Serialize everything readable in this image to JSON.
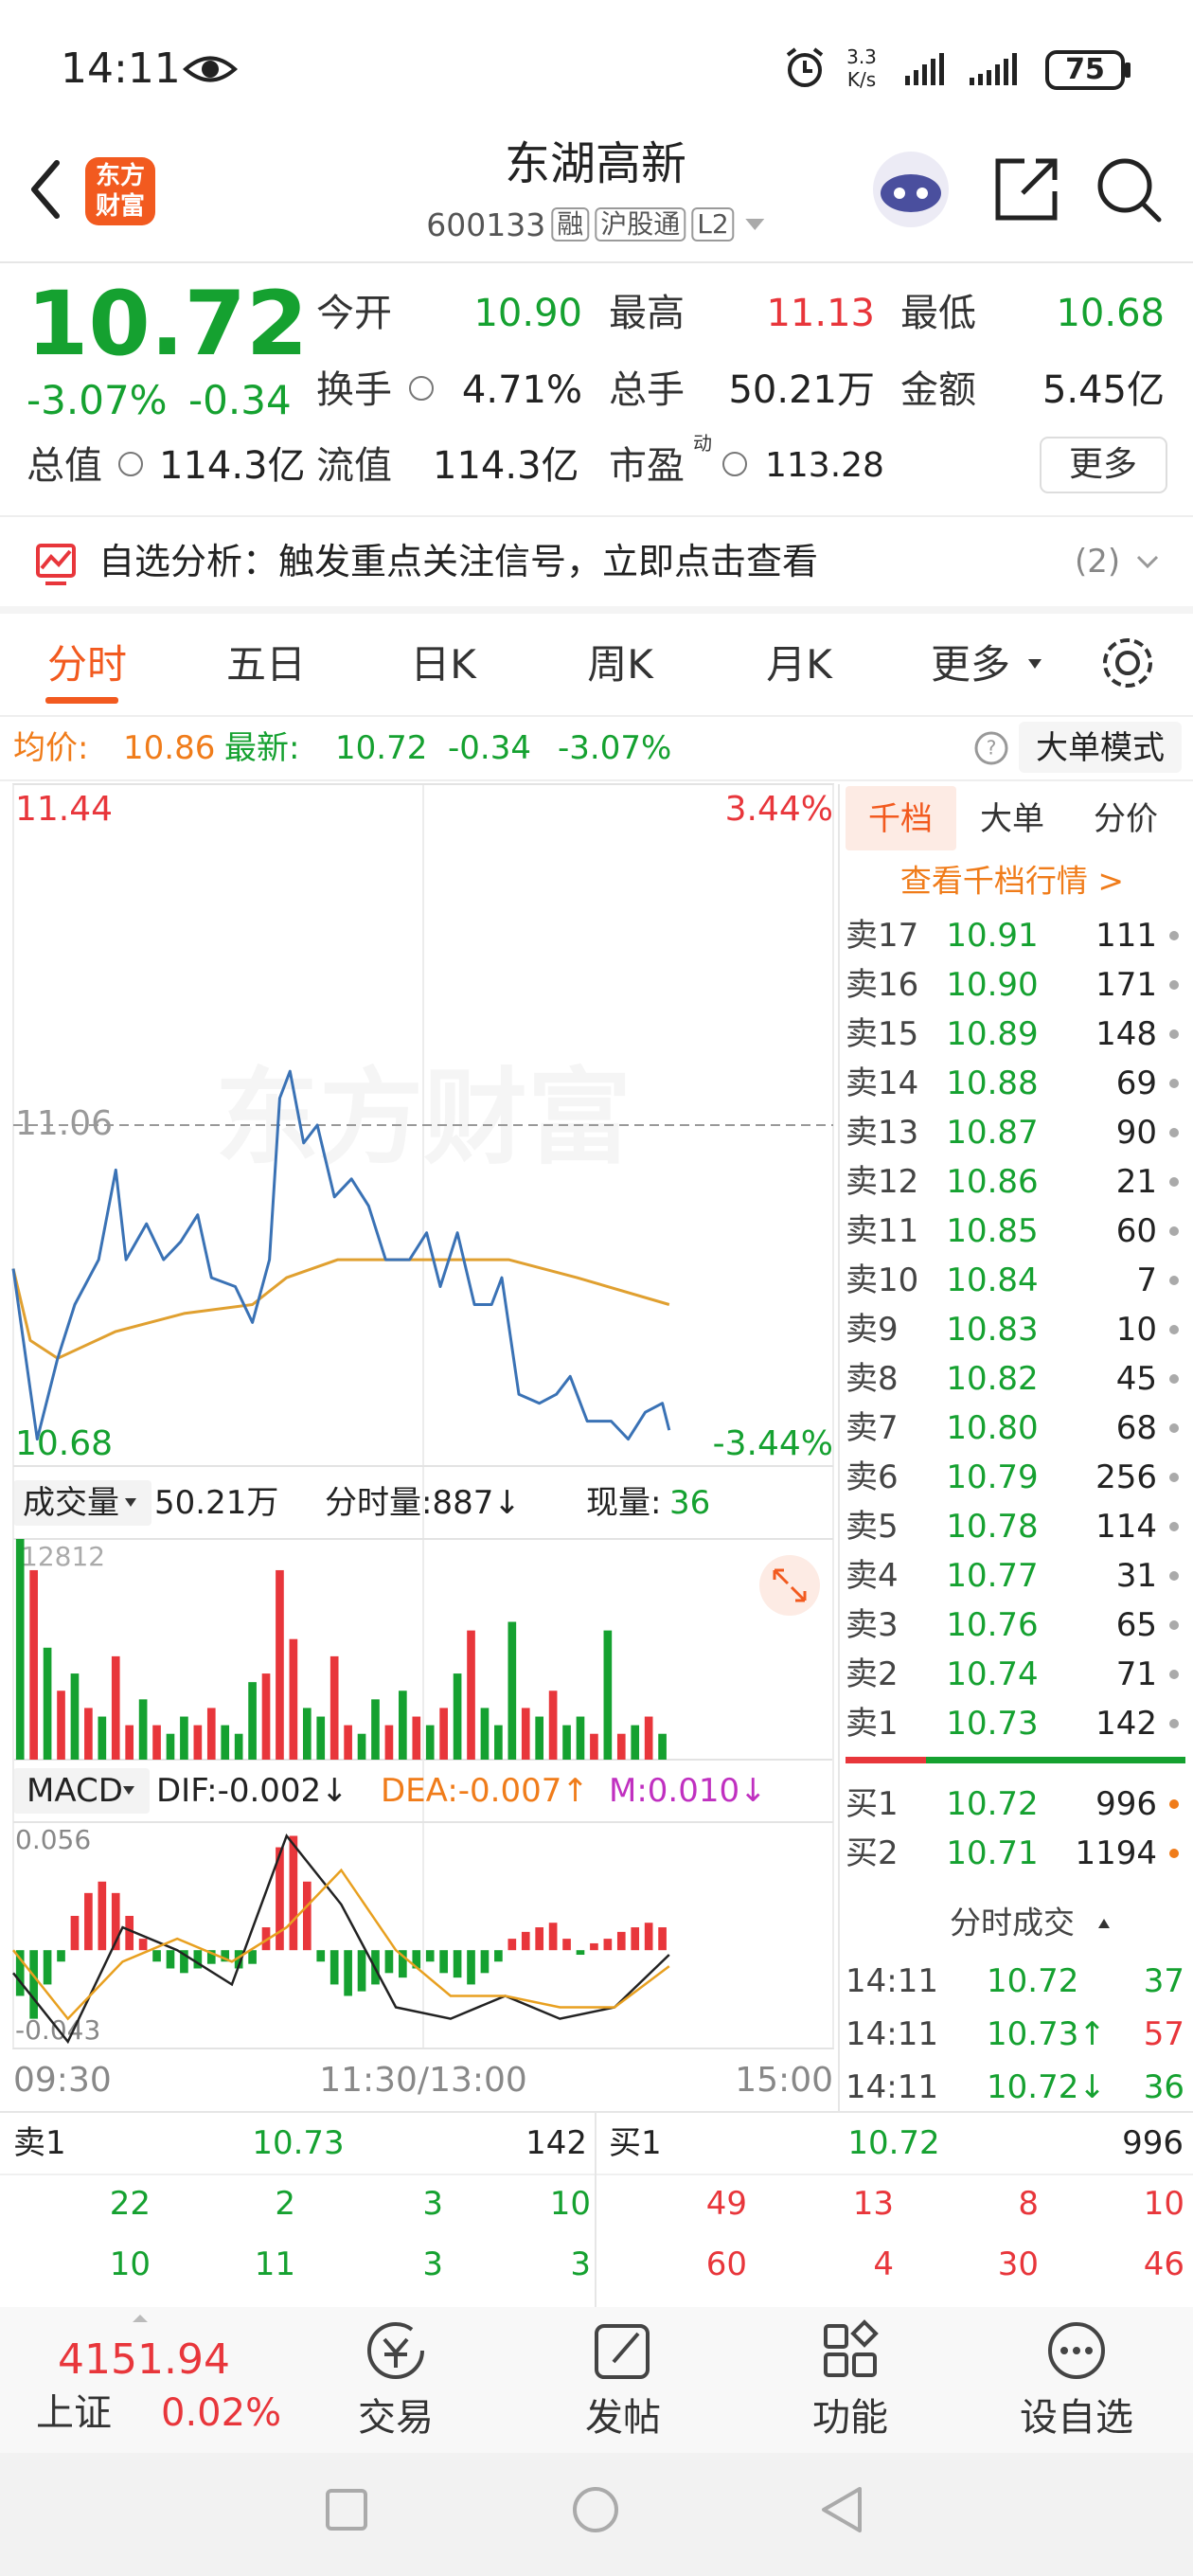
{
  "status": {
    "time": "14:11",
    "speed": "3.3",
    "speed_unit": "K/s",
    "battery": "75"
  },
  "header": {
    "logo": [
      "东方",
      "财富"
    ],
    "title": "东湖高新",
    "code": "600133",
    "tags": [
      "融",
      "沪股通",
      "L2"
    ]
  },
  "quote": {
    "price": "10.72",
    "change_pct": "-3.07%",
    "change": "-0.34",
    "fields": [
      {
        "label": "今开",
        "value": "10.90",
        "color": "#15a130"
      },
      {
        "label": "最高",
        "value": "11.13",
        "color": "#e8363b"
      },
      {
        "label": "最低",
        "value": "10.68",
        "color": "#15a130"
      },
      {
        "label": "换手",
        "value": "4.71%"
      },
      {
        "label": "总手",
        "value": "50.21万"
      },
      {
        "label": "金额",
        "value": "5.45亿"
      },
      {
        "label": "总值",
        "value": "114.3亿"
      },
      {
        "label": "流值",
        "value": "114.3亿"
      },
      {
        "label": "市盈",
        "sup": "动",
        "value": "113.28"
      }
    ],
    "more": "更多"
  },
  "analysis": {
    "text": "自选分析：触发重点关注信号，立即点击查看",
    "count": "(2)"
  },
  "tabs": [
    "分时",
    "五日",
    "日K",
    "周K",
    "月K",
    "更多"
  ],
  "info": {
    "avg_label": "均价:",
    "avg": "10.86",
    "latest_label": "最新:",
    "latest": "10.72",
    "change": "-0.34",
    "change_pct": "-3.07%",
    "mode": "大单模式"
  },
  "chart_data": [
    {
      "type": "line",
      "watermark": "东方财富",
      "xlim": [
        0,
        240
      ],
      "xticks": [
        {
          "value": 0,
          "label": "09:30"
        },
        {
          "value": 120,
          "label": "11:30/13:00"
        },
        {
          "value": 240,
          "label": "15:00"
        }
      ],
      "ylim": [
        10.68,
        11.44
      ],
      "yticks": [
        11.44,
        11.06,
        10.68
      ],
      "y2lim": [
        -3.44,
        3.44
      ],
      "y2ticks": [
        {
          "value": 3.44,
          "label": "3.44%"
        },
        {
          "value": -3.44,
          "label": "-3.44%"
        }
      ],
      "series": [
        {
          "color": "#3a72b5",
          "x": [
            0,
            7,
            13,
            18,
            25,
            30,
            33,
            39,
            44,
            49,
            54,
            58,
            65,
            70,
            75,
            78,
            81,
            85,
            89,
            94,
            99,
            104,
            109,
            116,
            121,
            125,
            130,
            135,
            140,
            143,
            148,
            154,
            159,
            163,
            168,
            175,
            180,
            185,
            190,
            192
          ],
          "values": [
            10.9,
            10.71,
            10.8,
            10.86,
            10.91,
            11.01,
            10.91,
            10.95,
            10.91,
            10.93,
            10.96,
            10.89,
            10.88,
            10.84,
            10.91,
            11.09,
            11.12,
            11.04,
            11.06,
            10.98,
            11.0,
            10.97,
            10.91,
            10.91,
            10.94,
            10.88,
            10.94,
            10.86,
            10.86,
            10.89,
            10.76,
            10.75,
            10.76,
            10.78,
            10.73,
            10.73,
            10.71,
            10.74,
            10.75,
            10.72
          ]
        },
        {
          "color": "#e0a030",
          "x": [
            0,
            5,
            13,
            30,
            50,
            70,
            80,
            95,
            120,
            145,
            165,
            192
          ],
          "values": [
            10.9,
            10.82,
            10.8,
            10.83,
            10.85,
            10.86,
            10.89,
            10.91,
            10.91,
            10.91,
            10.89,
            10.86
          ]
        }
      ]
    },
    {
      "type": "bar",
      "label": "成交量",
      "total": "50.21万",
      "minute_volume": "分时量:887↓",
      "current_label": "现量:",
      "current": "36",
      "xlim": [
        0,
        240
      ],
      "ylim": [
        0,
        12812
      ],
      "yticks": [
        12812
      ],
      "x": [
        2,
        6,
        10,
        14,
        18,
        22,
        26,
        30,
        34,
        38,
        42,
        46,
        50,
        54,
        58,
        62,
        66,
        70,
        74,
        78,
        82,
        86,
        90,
        94,
        98,
        102,
        106,
        110,
        114,
        118,
        122,
        126,
        130,
        134,
        138,
        142,
        146,
        150,
        154,
        158,
        162,
        166,
        170,
        174,
        178,
        182,
        186,
        190
      ],
      "series": [
        {
          "color": "#e8363b",
          "values": [
            null,
            11000,
            null,
            4000,
            null,
            3000,
            null,
            6000,
            2000,
            null,
            2000,
            null,
            null,
            2000,
            3000,
            null,
            null,
            null,
            5000,
            11000,
            7000,
            null,
            null,
            6000,
            2000,
            null,
            null,
            2000,
            null,
            2500,
            null,
            3000,
            null,
            7500,
            null,
            null,
            null,
            3000,
            null,
            4000,
            null,
            null,
            1500,
            null,
            1500,
            null,
            2500,
            null
          ]
        },
        {
          "color": "#15a130",
          "values": [
            12812,
            null,
            6500,
            null,
            5000,
            null,
            2500,
            null,
            null,
            3500,
            null,
            1500,
            2500,
            null,
            null,
            2000,
            1500,
            4500,
            null,
            null,
            null,
            3000,
            2500,
            null,
            null,
            1500,
            3500,
            null,
            4000,
            null,
            2000,
            null,
            5000,
            null,
            3000,
            2000,
            8000,
            null,
            2500,
            null,
            2000,
            2500,
            null,
            7500,
            null,
            2000,
            null,
            1500
          ]
        }
      ]
    },
    {
      "type": "macd",
      "label": "MACD",
      "dif_label": "DIF:-0.002↓",
      "dea_label": "DEA:-0.007↑",
      "m_label": "M:0.010↓",
      "xlim": [
        0,
        240
      ],
      "ylim": [
        -0.043,
        0.056
      ],
      "yticks": [
        0.056,
        -0.043
      ],
      "up_color": "#e8363b",
      "down_color": "#15a130",
      "x": [
        2,
        6,
        10,
        14,
        18,
        22,
        26,
        30,
        34,
        38,
        42,
        46,
        50,
        54,
        58,
        62,
        66,
        70,
        74,
        78,
        82,
        86,
        90,
        94,
        98,
        102,
        106,
        110,
        114,
        118,
        122,
        126,
        130,
        134,
        138,
        142,
        146,
        150,
        154,
        158,
        162,
        166,
        170,
        174,
        178,
        182,
        186,
        190
      ],
      "values": [
        -0.02,
        -0.03,
        -0.015,
        -0.005,
        0.015,
        0.025,
        0.03,
        0.025,
        0.015,
        0.005,
        -0.005,
        -0.008,
        -0.01,
        -0.008,
        -0.006,
        -0.005,
        -0.008,
        -0.006,
        0.01,
        0.045,
        0.05,
        0.03,
        -0.005,
        -0.015,
        -0.02,
        -0.018,
        -0.015,
        -0.01,
        -0.012,
        -0.008,
        -0.005,
        -0.01,
        -0.012,
        -0.015,
        -0.01,
        -0.005,
        0.005,
        0.008,
        0.01,
        0.012,
        0.005,
        -0.002,
        0.003,
        0.005,
        0.008,
        0.01,
        0.012,
        0.01
      ],
      "series": [
        {
          "color": "#222222",
          "x": [
            0,
            16,
            32,
            48,
            64,
            80,
            96,
            112,
            128,
            144,
            160,
            176,
            192
          ],
          "values": [
            -0.01,
            -0.04,
            0.01,
            0.0,
            -0.015,
            0.05,
            0.02,
            -0.025,
            -0.03,
            -0.02,
            -0.03,
            -0.025,
            -0.002
          ]
        },
        {
          "color": "#e8a020",
          "x": [
            0,
            16,
            32,
            48,
            64,
            80,
            96,
            112,
            128,
            144,
            160,
            176,
            192
          ],
          "values": [
            0.0,
            -0.03,
            -0.005,
            0.005,
            -0.005,
            0.01,
            0.035,
            0.0,
            -0.02,
            -0.02,
            -0.025,
            -0.025,
            -0.007
          ]
        }
      ]
    }
  ],
  "order_book": {
    "tabs": [
      "千档",
      "大单",
      "分价"
    ],
    "link": "查看千档行情 >",
    "asks": [
      {
        "label": "卖17",
        "price": "10.91",
        "volume": "111"
      },
      {
        "label": "卖16",
        "price": "10.90",
        "volume": "171"
      },
      {
        "label": "卖15",
        "price": "10.89",
        "volume": "148"
      },
      {
        "label": "卖14",
        "price": "10.88",
        "volume": "69"
      },
      {
        "label": "卖13",
        "price": "10.87",
        "volume": "90"
      },
      {
        "label": "卖12",
        "price": "10.86",
        "volume": "21"
      },
      {
        "label": "卖11",
        "price": "10.85",
        "volume": "60"
      },
      {
        "label": "卖10",
        "price": "10.84",
        "volume": "7"
      },
      {
        "label": "卖9",
        "price": "10.83",
        "volume": "10"
      },
      {
        "label": "卖8",
        "price": "10.82",
        "volume": "45"
      },
      {
        "label": "卖7",
        "price": "10.80",
        "volume": "68"
      },
      {
        "label": "卖6",
        "price": "10.79",
        "volume": "256"
      },
      {
        "label": "卖5",
        "price": "10.78",
        "volume": "114"
      },
      {
        "label": "卖4",
        "price": "10.77",
        "volume": "31"
      },
      {
        "label": "卖3",
        "price": "10.76",
        "volume": "65"
      },
      {
        "label": "卖2",
        "price": "10.74",
        "volume": "71"
      },
      {
        "label": "卖1",
        "price": "10.73",
        "volume": "142"
      }
    ],
    "bids": [
      {
        "label": "买1",
        "price": "10.72",
        "volume": "996"
      },
      {
        "label": "买2",
        "price": "10.71",
        "volume": "1194"
      }
    ],
    "trades_title": "分时成交",
    "trades": [
      {
        "time": "14:11",
        "price": "10.72",
        "volume": "37",
        "color": "#15a130"
      },
      {
        "time": "14:11",
        "price": "10.73↑",
        "volume": "57",
        "color": "#e8363b"
      },
      {
        "time": "14:11",
        "price": "10.72↓",
        "volume": "36",
        "color": "#15a130"
      }
    ]
  },
  "bottom": {
    "sell": {
      "label": "卖1",
      "price": "10.73",
      "volume": "142"
    },
    "buy": {
      "label": "买1",
      "price": "10.72",
      "volume": "996"
    },
    "sell_rows": [
      [
        "22",
        "2",
        "3",
        "10"
      ],
      [
        "10",
        "11",
        "3",
        "3"
      ]
    ],
    "buy_rows": [
      [
        "49",
        "13",
        "8",
        "10"
      ],
      [
        "60",
        "4",
        "30",
        "46"
      ]
    ]
  },
  "nav": {
    "index_value": "4151.94",
    "index_name": "上证",
    "index_pct": "0.02%",
    "items": [
      "交易",
      "发帖",
      "功能",
      "设自选"
    ]
  }
}
